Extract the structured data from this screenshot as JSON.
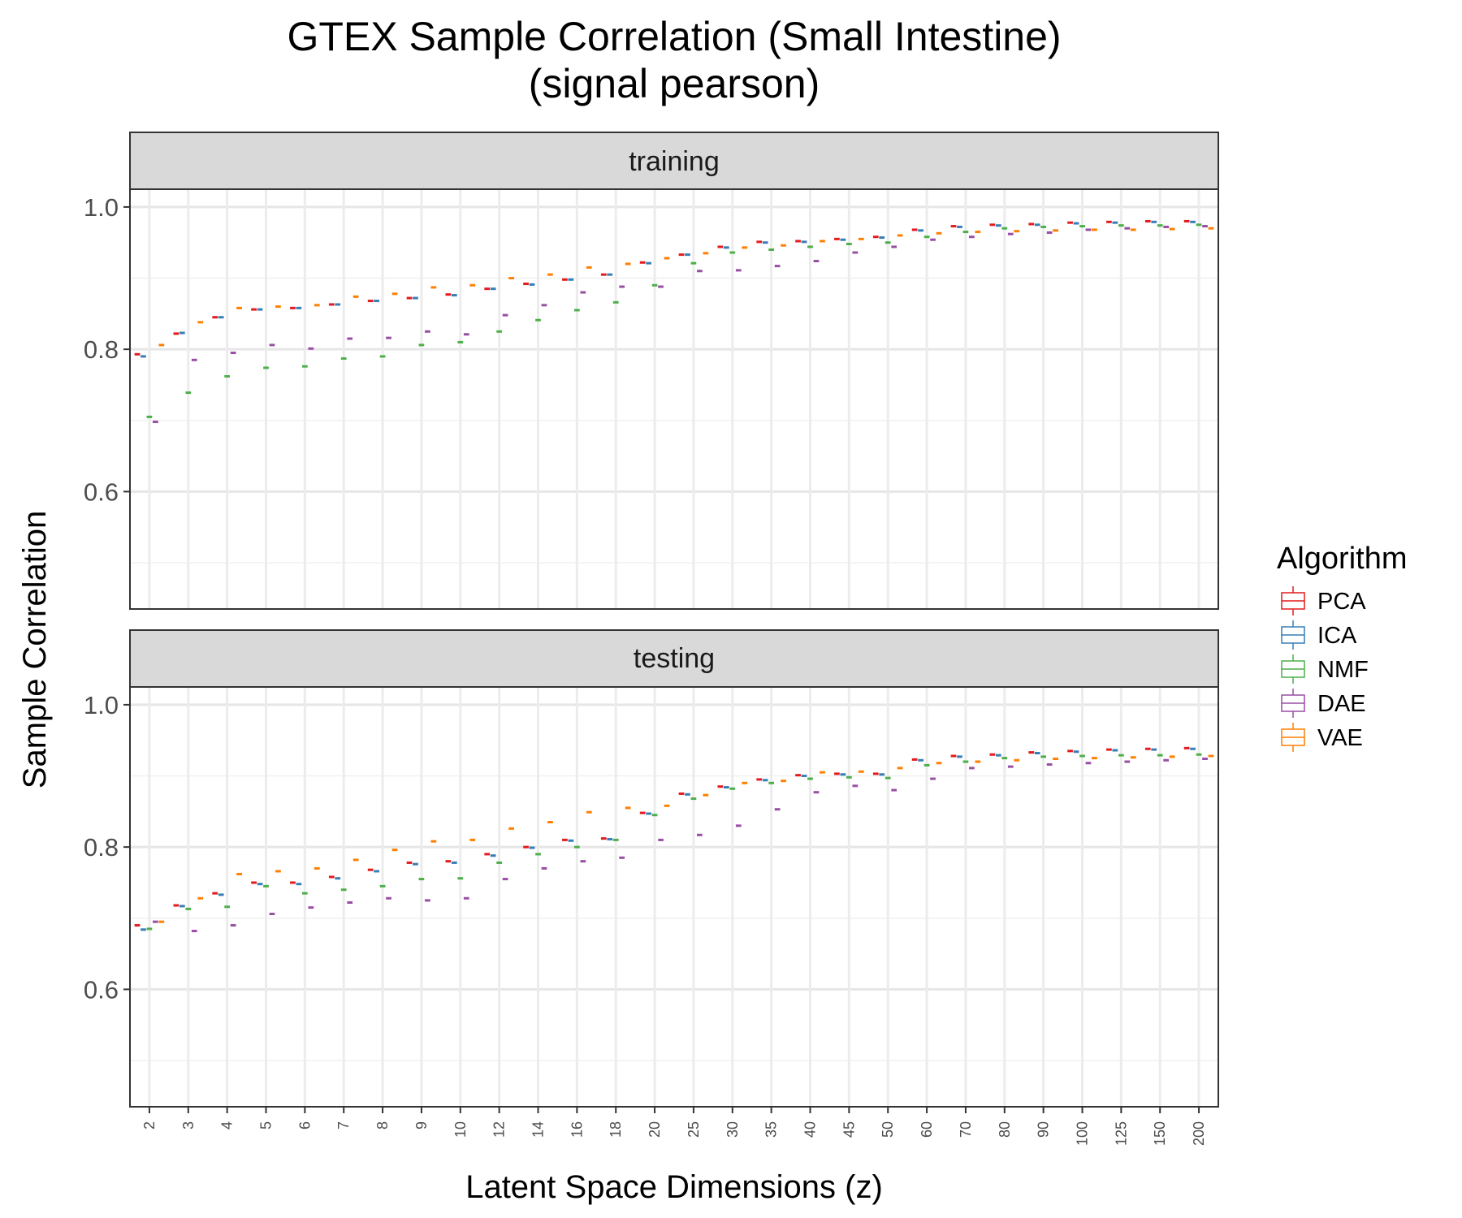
{
  "chart_data": {
    "type": "box",
    "title": "GTEX Sample Correlation (Small Intestine)",
    "subtitle": "(signal pearson)",
    "xlabel": "Latent Space Dimensions (z)",
    "ylabel": "Sample Correlation",
    "ylim": [
      0.435,
      1.025
    ],
    "yticks": [
      0.6,
      0.8,
      1.0
    ],
    "ytick_labels": [
      "0.6",
      "0.8",
      "1.0"
    ],
    "categories": [
      "2",
      "3",
      "4",
      "5",
      "6",
      "7",
      "8",
      "9",
      "10",
      "12",
      "14",
      "16",
      "18",
      "20",
      "25",
      "30",
      "35",
      "40",
      "45",
      "50",
      "60",
      "70",
      "80",
      "90",
      "100",
      "125",
      "150",
      "200"
    ],
    "legend": {
      "title": "Algorithm",
      "position": "right",
      "entries": [
        {
          "name": "PCA",
          "color": "#e41a1c"
        },
        {
          "name": "ICA",
          "color": "#377eb8"
        },
        {
          "name": "NMF",
          "color": "#4daf4a"
        },
        {
          "name": "DAE",
          "color": "#984ea3"
        },
        {
          "name": "VAE",
          "color": "#ff7f00"
        }
      ]
    },
    "grid": true,
    "panels": [
      {
        "label": "training",
        "series": [
          {
            "name": "PCA",
            "median": [
              0.793,
              0.822,
              0.845,
              0.856,
              0.858,
              0.863,
              0.868,
              0.872,
              0.877,
              0.885,
              0.892,
              0.898,
              0.905,
              0.922,
              0.933,
              0.944,
              0.951,
              0.952,
              0.955,
              0.958,
              0.968,
              0.973,
              0.975,
              0.976,
              0.978,
              0.979,
              0.98,
              0.98
            ]
          },
          {
            "name": "ICA",
            "median": [
              0.79,
              0.823,
              0.845,
              0.856,
              0.858,
              0.863,
              0.868,
              0.872,
              0.876,
              0.885,
              0.891,
              0.898,
              0.905,
              0.921,
              0.933,
              0.943,
              0.95,
              0.951,
              0.954,
              0.957,
              0.967,
              0.972,
              0.974,
              0.975,
              0.977,
              0.978,
              0.979,
              0.979
            ]
          },
          {
            "name": "NMF",
            "median": [
              0.705,
              0.739,
              0.762,
              0.774,
              0.776,
              0.787,
              0.79,
              0.806,
              0.81,
              0.825,
              0.841,
              0.855,
              0.866,
              0.89,
              0.921,
              0.936,
              0.94,
              0.944,
              0.948,
              0.95,
              0.958,
              0.965,
              0.97,
              0.972,
              0.973,
              0.974,
              0.974,
              0.975
            ]
          },
          {
            "name": "DAE",
            "median": [
              0.698,
              0.785,
              0.795,
              0.806,
              0.801,
              0.815,
              0.816,
              0.825,
              0.821,
              0.848,
              0.862,
              0.88,
              0.888,
              0.888,
              0.91,
              0.911,
              0.917,
              0.924,
              0.936,
              0.944,
              0.954,
              0.958,
              0.962,
              0.964,
              0.968,
              0.97,
              0.972,
              0.973
            ]
          },
          {
            "name": "VAE",
            "median": [
              0.806,
              0.838,
              0.858,
              0.86,
              0.862,
              0.874,
              0.878,
              0.887,
              0.89,
              0.9,
              0.905,
              0.915,
              0.92,
              0.928,
              0.935,
              0.943,
              0.946,
              0.952,
              0.955,
              0.96,
              0.963,
              0.965,
              0.966,
              0.967,
              0.968,
              0.968,
              0.969,
              0.97
            ]
          }
        ]
      },
      {
        "label": "testing",
        "series": [
          {
            "name": "PCA",
            "median": [
              0.69,
              0.718,
              0.735,
              0.75,
              0.75,
              0.758,
              0.768,
              0.778,
              0.78,
              0.79,
              0.8,
              0.81,
              0.812,
              0.848,
              0.875,
              0.885,
              0.895,
              0.901,
              0.903,
              0.903,
              0.923,
              0.928,
              0.93,
              0.933,
              0.935,
              0.937,
              0.938,
              0.939
            ]
          },
          {
            "name": "ICA",
            "median": [
              0.684,
              0.717,
              0.733,
              0.748,
              0.748,
              0.756,
              0.766,
              0.776,
              0.778,
              0.788,
              0.799,
              0.809,
              0.811,
              0.847,
              0.874,
              0.884,
              0.894,
              0.9,
              0.902,
              0.902,
              0.922,
              0.927,
              0.929,
              0.932,
              0.934,
              0.936,
              0.937,
              0.938
            ]
          },
          {
            "name": "NMF",
            "median": [
              0.685,
              0.713,
              0.716,
              0.745,
              0.735,
              0.74,
              0.745,
              0.755,
              0.756,
              0.778,
              0.79,
              0.8,
              0.81,
              0.845,
              0.868,
              0.882,
              0.89,
              0.896,
              0.898,
              0.897,
              0.915,
              0.92,
              0.925,
              0.927,
              0.928,
              0.929,
              0.929,
              0.93
            ]
          },
          {
            "name": "DAE",
            "median": [
              0.695,
              0.682,
              0.69,
              0.706,
              0.715,
              0.722,
              0.728,
              0.725,
              0.728,
              0.755,
              0.77,
              0.78,
              0.785,
              0.81,
              0.817,
              0.83,
              0.853,
              0.877,
              0.886,
              0.88,
              0.896,
              0.911,
              0.913,
              0.916,
              0.918,
              0.92,
              0.922,
              0.924
            ]
          },
          {
            "name": "VAE",
            "median": [
              0.695,
              0.728,
              0.762,
              0.766,
              0.77,
              0.782,
              0.796,
              0.808,
              0.81,
              0.826,
              0.835,
              0.849,
              0.855,
              0.858,
              0.873,
              0.89,
              0.893,
              0.905,
              0.906,
              0.911,
              0.918,
              0.92,
              0.922,
              0.924,
              0.925,
              0.926,
              0.927,
              0.928
            ]
          }
        ]
      }
    ]
  }
}
